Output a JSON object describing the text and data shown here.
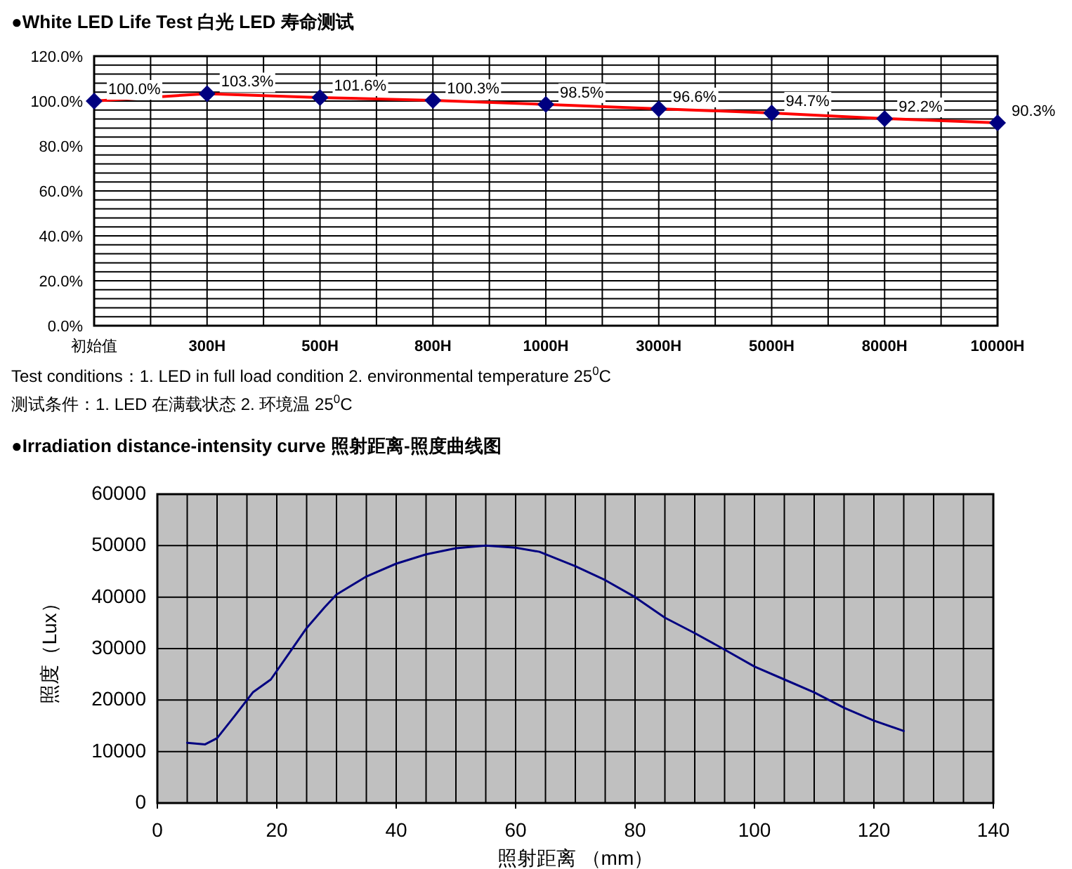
{
  "chart_data": [
    {
      "type": "line",
      "title": "●White LED Life Test  白光 LED 寿命测试",
      "categories": [
        "初始值",
        "300H",
        "500H",
        "800H",
        "1000H",
        "3000H",
        "5000H",
        "8000H",
        "10000H"
      ],
      "series": [
        {
          "color": "#ff0000",
          "colors": [
            "#000080",
            "#000080",
            "#000080",
            "#000080",
            "#000080",
            "#000080",
            "#000080",
            "#000080",
            "#000080"
          ],
          "values": [
            100.0,
            103.3,
            101.6,
            100.3,
            98.5,
            96.6,
            94.7,
            92.2,
            90.3
          ],
          "value_labels": [
            "100.0%",
            "103.3%",
            "101.6%",
            "100.3%",
            "98.5%",
            "96.6%",
            "94.7%",
            "92.2%",
            "90.3%"
          ]
        }
      ],
      "marker": "diamond",
      "grid": true,
      "ylim": [
        0,
        120
      ],
      "yticks": [
        {
          "value": 0,
          "label": "0.0%"
        },
        {
          "value": 4,
          "label": null
        },
        {
          "value": 8,
          "label": null
        },
        {
          "value": 12,
          "label": null
        },
        {
          "value": 16,
          "label": null
        },
        {
          "value": 20,
          "label": "20.0%"
        },
        {
          "value": 24,
          "label": null
        },
        {
          "value": 28,
          "label": null
        },
        {
          "value": 32,
          "label": null
        },
        {
          "value": 36,
          "label": null
        },
        {
          "value": 40,
          "label": "40.0%"
        },
        {
          "value": 44,
          "label": null
        },
        {
          "value": 48,
          "label": null
        },
        {
          "value": 52,
          "label": null
        },
        {
          "value": 56,
          "label": null
        },
        {
          "value": 60,
          "label": "60.0%"
        },
        {
          "value": 64,
          "label": null
        },
        {
          "value": 68,
          "label": null
        },
        {
          "value": 72,
          "label": null
        },
        {
          "value": 76,
          "label": null
        },
        {
          "value": 80,
          "label": "80.0%"
        },
        {
          "value": 84,
          "label": null
        },
        {
          "value": 88,
          "label": null
        },
        {
          "value": 92,
          "label": null
        },
        {
          "value": 96,
          "label": null
        },
        {
          "value": 100,
          "label": "100.0%"
        },
        {
          "value": 104,
          "label": null
        },
        {
          "value": 108,
          "label": null
        },
        {
          "value": 112,
          "label": null
        },
        {
          "value": 116,
          "label": null
        },
        {
          "value": 120,
          "label": "120.0%"
        }
      ],
      "annotations": [
        "Test conditions：1. LED in full load condition     2. environmental temperature 25$^{0}$C",
        "测试条件：1. LED 在满载状态   2. 环境温 25$^{0}$C"
      ]
    },
    {
      "type": "line",
      "title": "●Irradiation distance-intensity curve  照射距离-照度曲线图",
      "xlabel": "照射距离 （mm）",
      "ylabel": "照度（Lux）",
      "x": [
        5,
        8,
        10,
        13,
        16,
        19,
        22,
        25,
        28,
        30,
        35,
        40,
        45,
        50,
        55,
        60,
        64,
        70,
        75,
        80,
        85,
        90,
        95,
        100,
        105,
        110,
        115,
        120,
        125
      ],
      "series": [
        {
          "color": "#000080",
          "values": [
            11700,
            11400,
            12600,
            17000,
            21500,
            24000,
            29000,
            34000,
            38000,
            40500,
            44000,
            46500,
            48300,
            49500,
            50000,
            49600,
            48800,
            46000,
            43300,
            40000,
            36000,
            33000,
            29800,
            26500,
            24000,
            21500,
            18500,
            16000,
            14000
          ]
        }
      ],
      "grid": true,
      "xlim": [
        0,
        140
      ],
      "ylim": [
        0,
        60000
      ],
      "xticks": [
        0,
        {
          "value": 5,
          "label": null
        },
        {
          "value": 10,
          "label": null
        },
        {
          "value": 15,
          "label": null
        },
        20,
        {
          "value": 25,
          "label": null
        },
        {
          "value": 30,
          "label": null
        },
        {
          "value": 35,
          "label": null
        },
        40,
        {
          "value": 45,
          "label": null
        },
        {
          "value": 50,
          "label": null
        },
        {
          "value": 55,
          "label": null
        },
        60,
        {
          "value": 65,
          "label": null
        },
        {
          "value": 70,
          "label": null
        },
        {
          "value": 75,
          "label": null
        },
        80,
        {
          "value": 85,
          "label": null
        },
        {
          "value": 90,
          "label": null
        },
        {
          "value": 95,
          "label": null
        },
        100,
        {
          "value": 105,
          "label": null
        },
        {
          "value": 110,
          "label": null
        },
        {
          "value": 115,
          "label": null
        },
        120,
        {
          "value": 125,
          "label": null
        },
        {
          "value": 130,
          "label": null
        },
        {
          "value": 135,
          "label": null
        },
        140
      ],
      "yticks": [
        0,
        10000,
        20000,
        30000,
        40000,
        50000,
        60000
      ]
    }
  ]
}
